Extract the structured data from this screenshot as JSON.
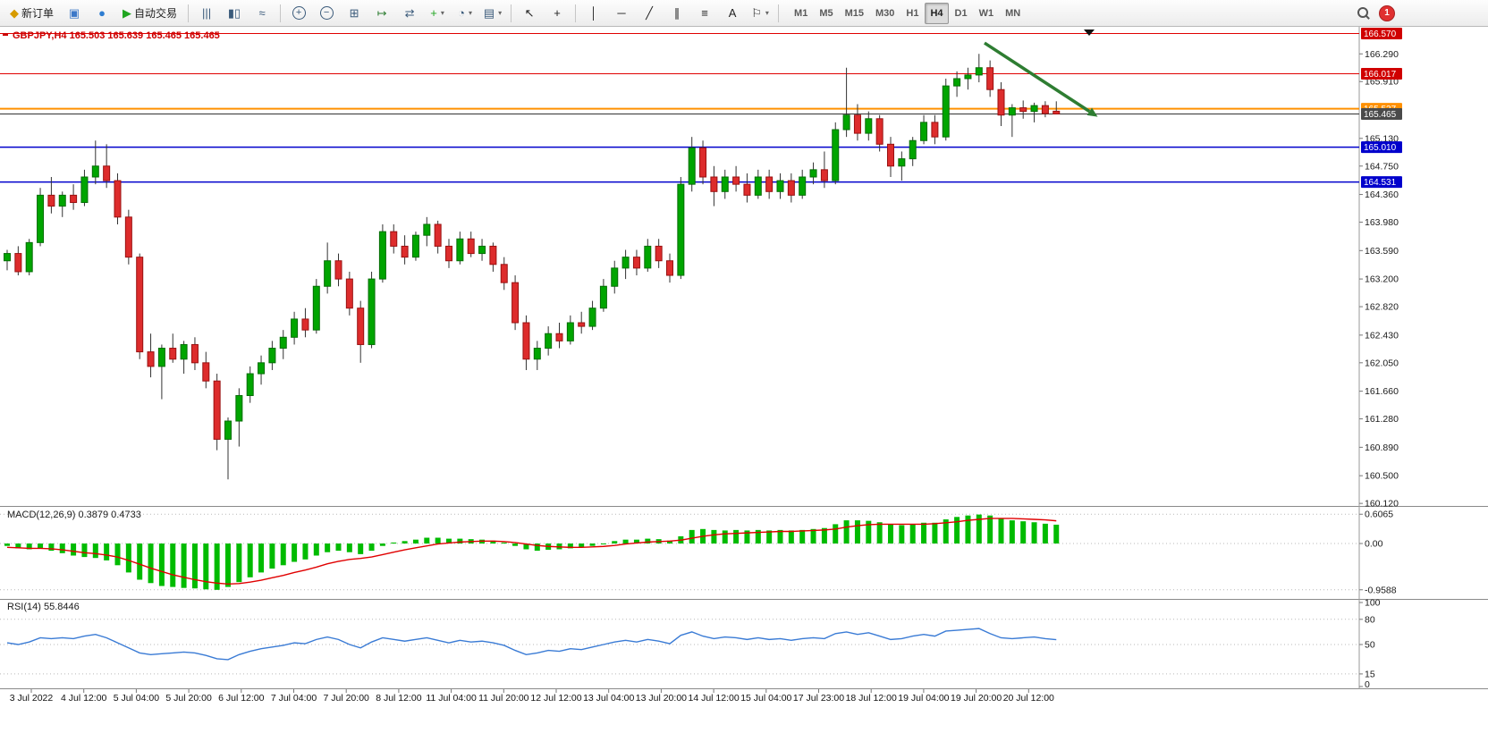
{
  "toolbar": {
    "groups": [
      {
        "items": [
          {
            "name": "new-order-button",
            "icon": "order-icon",
            "label": "新订单"
          },
          {
            "name": "chart-window-button",
            "icon": "chart-window-icon"
          },
          {
            "name": "market-watch-button",
            "icon": "globe-icon"
          },
          {
            "name": "autotrading-button",
            "icon": "play-icon",
            "label": "自动交易"
          }
        ]
      },
      {
        "items": [
          {
            "name": "bar-chart-button",
            "icon": "bars-icon"
          },
          {
            "name": "candlestick-chart-button",
            "icon": "candles-icon"
          },
          {
            "name": "line-chart-button",
            "icon": "linechart-icon"
          }
        ]
      },
      {
        "items": [
          {
            "name": "zoom-in-button",
            "icon": "zoom-in-icon"
          },
          {
            "name": "zoom-out-button",
            "icon": "zoom-out-icon"
          },
          {
            "name": "tile-windows-button",
            "icon": "tiles-icon"
          },
          {
            "name": "auto-scroll-button",
            "icon": "autoscroll-icon"
          },
          {
            "name": "chart-shift-button",
            "icon": "chartshift-icon"
          },
          {
            "name": "indicators-button",
            "icon": "indicators-icon",
            "caret": true
          },
          {
            "name": "periods-button",
            "icon": "clock-icon",
            "caret": true
          },
          {
            "name": "templates-button",
            "icon": "template-icon",
            "caret": true
          }
        ]
      },
      {
        "items": [
          {
            "name": "cursor-button",
            "icon": "cursor-icon"
          },
          {
            "name": "crosshair-button",
            "icon": "crosshair-icon"
          }
        ]
      },
      {
        "items": [
          {
            "name": "vertical-line-button",
            "icon": "vline-icon"
          },
          {
            "name": "horizontal-line-button",
            "icon": "hline-icon"
          },
          {
            "name": "trendline-button",
            "icon": "trendline-icon"
          },
          {
            "name": "channel-button",
            "icon": "channel-icon"
          },
          {
            "name": "fibonacci-button",
            "icon": "fibonacci-icon"
          },
          {
            "name": "text-button",
            "icon": "text-icon"
          },
          {
            "name": "arrows-button",
            "icon": "arrows-icon",
            "caret": true
          }
        ]
      }
    ],
    "timeframes": [
      {
        "label": "M1"
      },
      {
        "label": "M5"
      },
      {
        "label": "M15"
      },
      {
        "label": "M30"
      },
      {
        "label": "H1"
      },
      {
        "label": "H4",
        "active": true
      },
      {
        "label": "D1"
      },
      {
        "label": "W1"
      },
      {
        "label": "MN"
      }
    ],
    "notification_badge": "1"
  },
  "chart_data": {
    "type": "candlestick",
    "symbol": "GBPJPY",
    "timeframe": "H4",
    "title": "GBPJPY,H4 165.503 165.639 165.465 165.465",
    "y_range": [
      160.12,
      166.6
    ],
    "colors": {
      "up": "#00a500",
      "down": "#dd2c2c",
      "wick": "#333333",
      "macd_hist": "#00bb00",
      "macd_signal": "#e00000",
      "rsi_line": "#3a7bd5"
    },
    "price_axis_ticks": [
      "166.290",
      "165.910",
      "165.130",
      "164.750",
      "164.360",
      "163.980",
      "163.590",
      "163.200",
      "162.820",
      "162.430",
      "162.050",
      "161.660",
      "161.280",
      "160.890",
      "160.500",
      "160.120"
    ],
    "horizontal_lines": [
      {
        "label": "166.570",
        "value": 166.57,
        "color": "#e00000",
        "label_bg": "#d00000",
        "width": 1
      },
      {
        "label": "166.017",
        "value": 166.017,
        "color": "#e00000",
        "label_bg": "#d00000",
        "width": 1
      },
      {
        "label": "165.537",
        "value": 165.537,
        "color": "#ff9000",
        "label_bg": "#ff9000",
        "width": 2
      },
      {
        "label": "165.465",
        "value": 165.465,
        "color": "#333333",
        "label_bg": "#4a4a4a",
        "width": 1
      },
      {
        "label": "165.010",
        "value": 165.01,
        "color": "#0000cc",
        "label_bg": "#0000cc",
        "width": 1.5
      },
      {
        "label": "164.531",
        "value": 164.531,
        "color": "#0000cc",
        "label_bg": "#0000cc",
        "width": 1.5
      }
    ],
    "x_labels": [
      "3 Jul 2022",
      "4 Jul 12:00",
      "5 Jul 04:00",
      "5 Jul 20:00",
      "6 Jul 12:00",
      "7 Jul 04:00",
      "7 Jul 20:00",
      "8 Jul 12:00",
      "11 Jul 04:00",
      "11 Jul 20:00",
      "12 Jul 12:00",
      "13 Jul 04:00",
      "13 Jul 20:00",
      "14 Jul 12:00",
      "15 Jul 04:00",
      "17 Jul 23:00",
      "18 Jul 12:00",
      "19 Jul 04:00",
      "19 Jul 20:00",
      "20 Jul 12:00"
    ],
    "ohlc": [
      [
        163.45,
        163.6,
        163.32,
        163.55
      ],
      [
        163.55,
        163.65,
        163.25,
        163.3
      ],
      [
        163.3,
        163.75,
        163.25,
        163.7
      ],
      [
        163.7,
        164.45,
        163.65,
        164.35
      ],
      [
        164.35,
        164.6,
        164.1,
        164.2
      ],
      [
        164.2,
        164.4,
        164.05,
        164.35
      ],
      [
        164.35,
        164.5,
        164.15,
        164.25
      ],
      [
        164.25,
        164.7,
        164.2,
        164.6
      ],
      [
        164.6,
        165.1,
        164.5,
        164.75
      ],
      [
        164.75,
        165.05,
        164.45,
        164.55
      ],
      [
        164.55,
        164.65,
        163.95,
        164.05
      ],
      [
        164.05,
        164.15,
        163.4,
        163.5
      ],
      [
        163.5,
        163.55,
        162.1,
        162.2
      ],
      [
        162.2,
        162.45,
        161.85,
        162.0
      ],
      [
        162.0,
        162.3,
        161.55,
        162.25
      ],
      [
        162.25,
        162.45,
        162.05,
        162.1
      ],
      [
        162.1,
        162.35,
        161.9,
        162.3
      ],
      [
        162.3,
        162.4,
        161.95,
        162.05
      ],
      [
        162.05,
        162.2,
        161.7,
        161.8
      ],
      [
        161.8,
        161.9,
        160.85,
        161.0
      ],
      [
        161.0,
        161.3,
        160.45,
        161.25
      ],
      [
        161.25,
        161.7,
        160.9,
        161.6
      ],
      [
        161.6,
        162.0,
        161.5,
        161.9
      ],
      [
        161.9,
        162.15,
        161.75,
        162.05
      ],
      [
        162.05,
        162.35,
        161.95,
        162.25
      ],
      [
        162.25,
        162.5,
        162.1,
        162.4
      ],
      [
        162.4,
        162.75,
        162.3,
        162.65
      ],
      [
        162.65,
        162.8,
        162.4,
        162.5
      ],
      [
        162.5,
        163.2,
        162.45,
        163.1
      ],
      [
        163.1,
        163.7,
        163.0,
        163.45
      ],
      [
        163.45,
        163.55,
        163.1,
        163.2
      ],
      [
        163.2,
        163.3,
        162.7,
        162.8
      ],
      [
        162.8,
        162.9,
        162.05,
        162.3
      ],
      [
        162.3,
        163.3,
        162.25,
        163.2
      ],
      [
        163.2,
        163.95,
        163.15,
        163.85
      ],
      [
        163.85,
        163.95,
        163.55,
        163.65
      ],
      [
        163.65,
        163.8,
        163.4,
        163.5
      ],
      [
        163.5,
        163.85,
        163.45,
        163.8
      ],
      [
        163.8,
        164.05,
        163.65,
        163.95
      ],
      [
        163.95,
        164.0,
        163.55,
        163.65
      ],
      [
        163.65,
        163.75,
        163.35,
        163.45
      ],
      [
        163.45,
        163.85,
        163.4,
        163.75
      ],
      [
        163.75,
        163.85,
        163.5,
        163.55
      ],
      [
        163.55,
        163.75,
        163.45,
        163.65
      ],
      [
        163.65,
        163.7,
        163.3,
        163.4
      ],
      [
        163.4,
        163.5,
        163.05,
        163.15
      ],
      [
        163.15,
        163.25,
        162.5,
        162.6
      ],
      [
        162.6,
        162.7,
        161.95,
        162.1
      ],
      [
        162.1,
        162.35,
        161.95,
        162.25
      ],
      [
        162.25,
        162.55,
        162.15,
        162.45
      ],
      [
        162.45,
        162.6,
        162.25,
        162.35
      ],
      [
        162.35,
        162.7,
        162.3,
        162.6
      ],
      [
        162.6,
        162.75,
        162.45,
        162.55
      ],
      [
        162.55,
        162.9,
        162.5,
        162.8
      ],
      [
        162.8,
        163.2,
        162.75,
        163.1
      ],
      [
        163.1,
        163.45,
        163.0,
        163.35
      ],
      [
        163.35,
        163.6,
        163.2,
        163.5
      ],
      [
        163.5,
        163.6,
        163.25,
        163.35
      ],
      [
        163.35,
        163.75,
        163.3,
        163.65
      ],
      [
        163.65,
        163.75,
        163.35,
        163.45
      ],
      [
        163.45,
        163.55,
        163.15,
        163.25
      ],
      [
        163.25,
        164.6,
        163.2,
        164.5
      ],
      [
        164.5,
        165.15,
        164.4,
        165.0
      ],
      [
        165.0,
        165.1,
        164.5,
        164.6
      ],
      [
        164.6,
        164.75,
        164.2,
        164.4
      ],
      [
        164.4,
        164.7,
        164.3,
        164.6
      ],
      [
        164.6,
        164.75,
        164.4,
        164.5
      ],
      [
        164.5,
        164.65,
        164.25,
        164.35
      ],
      [
        164.35,
        164.7,
        164.3,
        164.6
      ],
      [
        164.6,
        164.7,
        164.3,
        164.4
      ],
      [
        164.4,
        164.65,
        164.3,
        164.55
      ],
      [
        164.55,
        164.65,
        164.25,
        164.35
      ],
      [
        164.35,
        164.7,
        164.3,
        164.6
      ],
      [
        164.6,
        164.8,
        164.5,
        164.7
      ],
      [
        164.7,
        164.95,
        164.45,
        164.55
      ],
      [
        164.55,
        165.35,
        164.5,
        165.25
      ],
      [
        165.25,
        166.1,
        165.15,
        165.45
      ],
      [
        165.45,
        165.6,
        165.1,
        165.2
      ],
      [
        165.2,
        165.5,
        165.1,
        165.4
      ],
      [
        165.4,
        165.45,
        164.95,
        165.05
      ],
      [
        165.05,
        165.15,
        164.6,
        164.75
      ],
      [
        164.75,
        164.95,
        164.55,
        164.85
      ],
      [
        164.85,
        165.15,
        164.75,
        165.1
      ],
      [
        165.1,
        165.45,
        165.05,
        165.35
      ],
      [
        165.35,
        165.45,
        165.05,
        165.15
      ],
      [
        165.15,
        165.95,
        165.1,
        165.85
      ],
      [
        165.85,
        166.05,
        165.7,
        165.95
      ],
      [
        165.95,
        166.1,
        165.8,
        166.0
      ],
      [
        166.0,
        166.29,
        165.9,
        166.1
      ],
      [
        166.1,
        166.2,
        165.7,
        165.8
      ],
      [
        165.8,
        165.9,
        165.3,
        165.45
      ],
      [
        165.45,
        165.6,
        165.15,
        165.55
      ],
      [
        165.55,
        165.65,
        165.4,
        165.5
      ],
      [
        165.5,
        165.62,
        165.35,
        165.58
      ],
      [
        165.58,
        165.64,
        165.42,
        165.47
      ],
      [
        165.503,
        165.639,
        165.465,
        165.465
      ]
    ],
    "indicators": {
      "macd": {
        "label": "MACD(12,26,9) 0.3879 0.4733",
        "scale": [
          {
            "label": "0.6065",
            "value": 0.6065,
            "dashed": true
          },
          {
            "label": "0.00",
            "value": 0,
            "dashed": true
          },
          {
            "label": "-0.9588",
            "value": -0.9588,
            "dashed": true
          }
        ],
        "histogram": [
          -0.05,
          -0.1,
          -0.12,
          -0.1,
          -0.15,
          -0.2,
          -0.25,
          -0.28,
          -0.3,
          -0.35,
          -0.45,
          -0.6,
          -0.75,
          -0.82,
          -0.88,
          -0.9,
          -0.92,
          -0.93,
          -0.95,
          -0.96,
          -0.9,
          -0.8,
          -0.7,
          -0.6,
          -0.52,
          -0.45,
          -0.38,
          -0.33,
          -0.25,
          -0.18,
          -0.15,
          -0.18,
          -0.22,
          -0.15,
          -0.05,
          0.02,
          0.05,
          0.08,
          0.12,
          0.12,
          0.1,
          0.1,
          0.09,
          0.08,
          0.06,
          0.02,
          -0.05,
          -0.12,
          -0.15,
          -0.13,
          -0.12,
          -0.1,
          -0.08,
          -0.05,
          0.0,
          0.05,
          0.08,
          0.08,
          0.1,
          0.09,
          0.06,
          0.15,
          0.28,
          0.3,
          0.28,
          0.27,
          0.28,
          0.27,
          0.28,
          0.27,
          0.28,
          0.27,
          0.28,
          0.3,
          0.32,
          0.4,
          0.48,
          0.48,
          0.47,
          0.44,
          0.4,
          0.38,
          0.4,
          0.43,
          0.43,
          0.5,
          0.55,
          0.58,
          0.6,
          0.58,
          0.52,
          0.48,
          0.46,
          0.44,
          0.41,
          0.39
        ],
        "signal": [
          -0.08,
          -0.09,
          -0.1,
          -0.1,
          -0.11,
          -0.13,
          -0.16,
          -0.19,
          -0.21,
          -0.24,
          -0.28,
          -0.35,
          -0.43,
          -0.51,
          -0.58,
          -0.65,
          -0.7,
          -0.75,
          -0.79,
          -0.82,
          -0.84,
          -0.83,
          -0.8,
          -0.76,
          -0.71,
          -0.66,
          -0.6,
          -0.55,
          -0.49,
          -0.42,
          -0.37,
          -0.33,
          -0.31,
          -0.28,
          -0.23,
          -0.18,
          -0.13,
          -0.09,
          -0.05,
          -0.01,
          0.01,
          0.03,
          0.04,
          0.05,
          0.05,
          0.04,
          0.02,
          -0.01,
          -0.04,
          -0.06,
          -0.07,
          -0.08,
          -0.08,
          -0.07,
          -0.06,
          -0.04,
          -0.01,
          0.01,
          0.03,
          0.04,
          0.05,
          0.07,
          0.11,
          0.15,
          0.18,
          0.2,
          0.21,
          0.22,
          0.23,
          0.24,
          0.25,
          0.25,
          0.26,
          0.27,
          0.28,
          0.3,
          0.34,
          0.37,
          0.39,
          0.4,
          0.4,
          0.4,
          0.4,
          0.4,
          0.41,
          0.43,
          0.45,
          0.48,
          0.5,
          0.52,
          0.52,
          0.52,
          0.51,
          0.5,
          0.49,
          0.47
        ]
      },
      "rsi": {
        "label": "RSI(14) 55.8446",
        "scale": [
          {
            "label": "100",
            "value": 100
          },
          {
            "label": "80",
            "value": 80,
            "dashed": true
          },
          {
            "label": "50",
            "value": 50,
            "dashed": true
          },
          {
            "label": "15",
            "value": 15,
            "dashed": true
          },
          {
            "label": "0",
            "value": 0
          }
        ],
        "values": [
          52,
          50,
          53,
          58,
          57,
          58,
          57,
          60,
          62,
          58,
          52,
          46,
          40,
          38,
          39,
          40,
          41,
          40,
          37,
          33,
          32,
          38,
          42,
          45,
          47,
          49,
          52,
          51,
          56,
          59,
          56,
          50,
          46,
          53,
          58,
          56,
          54,
          56,
          58,
          55,
          52,
          55,
          53,
          54,
          52,
          49,
          43,
          38,
          40,
          43,
          42,
          45,
          44,
          47,
          50,
          53,
          55,
          53,
          56,
          54,
          51,
          61,
          65,
          60,
          57,
          59,
          58,
          56,
          58,
          56,
          57,
          55,
          57,
          58,
          57,
          63,
          65,
          62,
          64,
          60,
          56,
          57,
          60,
          62,
          60,
          66,
          67,
          68,
          69,
          63,
          58,
          57,
          58,
          59,
          57,
          55.84
        ]
      }
    },
    "annotations": {
      "trend_arrow": {
        "color": "#2e7d32",
        "from": {
          "index": 88.5,
          "price": 166.44
        },
        "to": {
          "index": 98,
          "price": 165.5
        }
      }
    }
  }
}
